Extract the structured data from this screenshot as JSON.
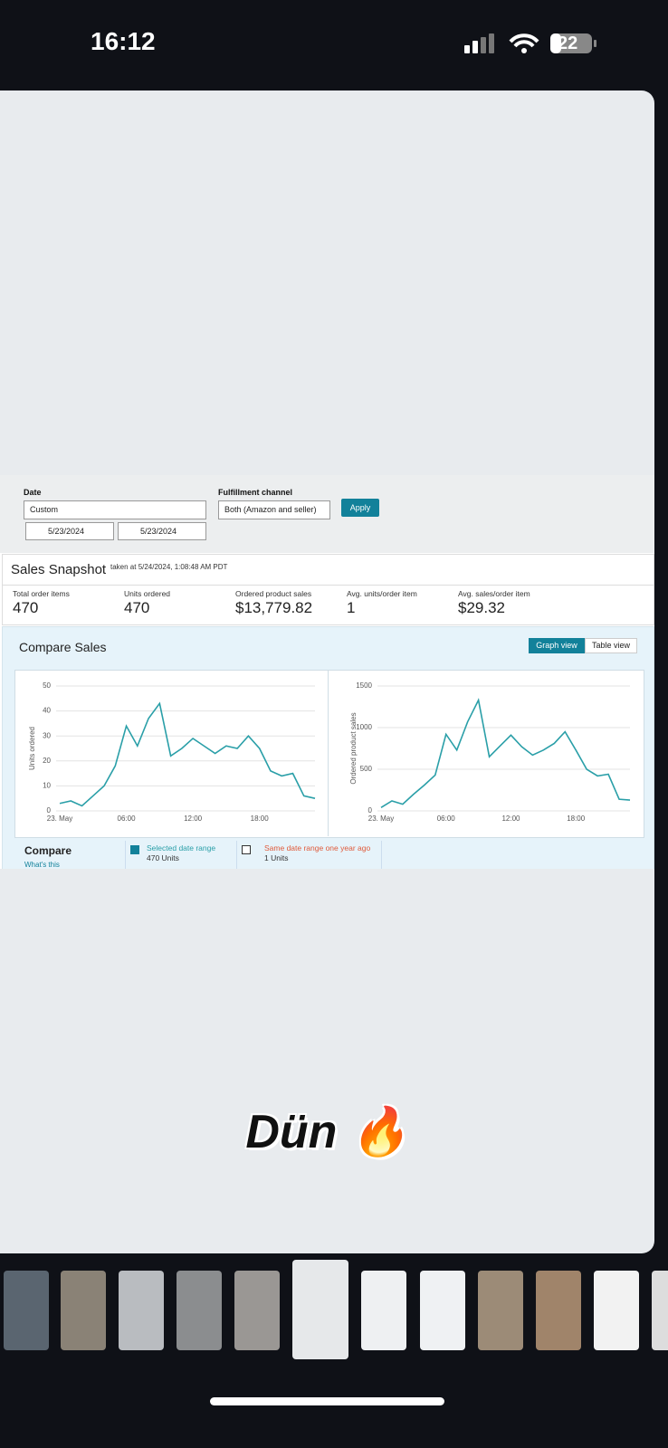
{
  "status_bar": {
    "time": "16:12",
    "battery": "22"
  },
  "filters": {
    "date_label": "Date",
    "date_value": "Custom",
    "start_date": "5/23/2024",
    "end_date": "5/23/2024",
    "channel_label": "Fulfillment channel",
    "channel_value": "Both (Amazon and seller)",
    "apply": "Apply"
  },
  "snapshot": {
    "title": "Sales Snapshot",
    "taken": "taken at 5/24/2024, 1:08:48 AM PDT",
    "metrics": [
      {
        "label": "Total order items",
        "value": "470"
      },
      {
        "label": "Units ordered",
        "value": "470"
      },
      {
        "label": "Ordered product sales",
        "value": "$13,779.82"
      },
      {
        "label": "Avg. units/order item",
        "value": "1"
      },
      {
        "label": "Avg. sales/order item",
        "value": "$29.32"
      }
    ]
  },
  "compare": {
    "title": "Compare Sales",
    "graph_view": "Graph view",
    "table_view": "Table view",
    "compare_label": "Compare",
    "whats_this": "What's this",
    "selected": "Selected date range",
    "selected_units": "470 Units",
    "last_year": "Same date range one year ago",
    "last_year_units": "1 Units"
  },
  "chart_data": [
    {
      "type": "line",
      "y_label": "Units ordered",
      "categories": [
        "23. May",
        null,
        null,
        null,
        null,
        null,
        "06:00",
        null,
        null,
        null,
        null,
        null,
        "12:00",
        null,
        null,
        null,
        null,
        null,
        "18:00",
        null,
        null,
        null,
        null,
        null
      ],
      "values": [
        3,
        4,
        2,
        6,
        10,
        18,
        34,
        26,
        37,
        43,
        22,
        25,
        29,
        26,
        23,
        26,
        25,
        30,
        25,
        16,
        14,
        15,
        6,
        5
      ],
      "color": "#2a9fa8",
      "ylim": [
        0,
        50
      ],
      "yticks": [
        0,
        10,
        20,
        30,
        40,
        50
      ],
      "grid": true
    },
    {
      "type": "line",
      "y_label": "Ordered product sales",
      "categories": [
        "23. May",
        null,
        null,
        null,
        null,
        null,
        "06:00",
        null,
        null,
        null,
        null,
        null,
        "12:00",
        null,
        null,
        null,
        null,
        null,
        "18:00",
        null,
        null,
        null,
        null,
        null
      ],
      "values": [
        40,
        120,
        80,
        200,
        310,
        430,
        920,
        730,
        1070,
        1330,
        650,
        780,
        910,
        770,
        670,
        730,
        810,
        950,
        730,
        500,
        420,
        440,
        140,
        130
      ],
      "color": "#2a9fa8",
      "ylim": [
        0,
        1500
      ],
      "yticks": [
        0,
        500,
        1000,
        1500
      ],
      "grid": true
    }
  ],
  "caption": "Dün 🔥"
}
